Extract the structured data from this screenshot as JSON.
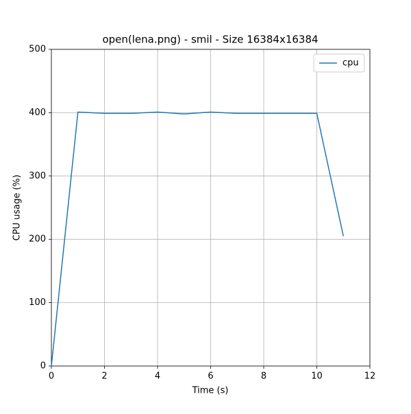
{
  "chart_data": {
    "type": "line",
    "title": "open(lena.png) - smil - Size 16384x16384",
    "x_label": "Time (s)",
    "y_label": "CPU usage (%)",
    "x": [
      0,
      1,
      2,
      3,
      4,
      5,
      6,
      7,
      8,
      9,
      10,
      11
    ],
    "series": [
      {
        "name": "cpu",
        "color": "#1f77b4",
        "values": [
          0,
          401,
          399,
          399,
          401,
          398,
          401,
          399,
          399,
          399,
          399,
          205
        ]
      }
    ],
    "xlim": [
      0,
      12
    ],
    "xticks": [
      0,
      2,
      4,
      6,
      8,
      10,
      12
    ],
    "ylim": [
      0,
      500
    ],
    "yticks": [
      0,
      100,
      200,
      300,
      400,
      500
    ],
    "grid": true,
    "legend": "upper right"
  }
}
